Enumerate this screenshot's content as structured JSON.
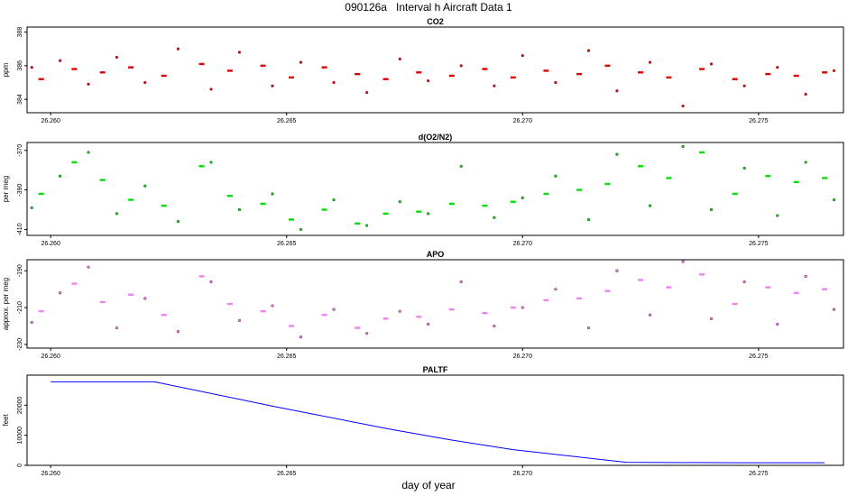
{
  "figure": {
    "title": "090126a   Interval h Aircraft Data 1",
    "xlabel": "day of year"
  },
  "chart_data": [
    {
      "type": "scatter",
      "title": "CO2",
      "ylabel": "ppm",
      "color": "#e00000",
      "flight_color": "#8b2a2a",
      "xlim": [
        26.2595,
        26.2768
      ],
      "ylim": [
        383.2,
        388.3
      ],
      "xticks": [
        "26.260",
        "26.265",
        "26.270",
        "26.275"
      ],
      "yticks": [
        "384",
        "386",
        "388"
      ],
      "series": [
        {
          "marker": "dash",
          "x": [
            26.2598,
            26.2605,
            26.2611,
            26.2617,
            26.2624,
            26.2632,
            26.2638,
            26.2645,
            26.2651,
            26.2658,
            26.2665,
            26.2671,
            26.2678,
            26.2685,
            26.2692,
            26.2698,
            26.2705,
            26.2712,
            26.2718,
            26.2725,
            26.2731,
            26.2738,
            26.2745,
            26.2752,
            26.2758,
            26.2764
          ],
          "y": [
            385.2,
            385.8,
            385.6,
            385.9,
            385.4,
            386.1,
            385.7,
            386.0,
            385.3,
            385.9,
            385.5,
            385.2,
            385.6,
            385.4,
            385.8,
            385.3,
            385.7,
            385.5,
            386.0,
            385.6,
            385.3,
            385.8,
            385.2,
            385.5,
            385.4,
            385.6
          ]
        },
        {
          "marker": "circle",
          "x": [
            26.2596,
            26.2602,
            26.2608,
            26.2614,
            26.262,
            26.2627,
            26.2634,
            26.264,
            26.2647,
            26.2653,
            26.266,
            26.2667,
            26.2674,
            26.268,
            26.2687,
            26.2694,
            26.27,
            26.2707,
            26.2714,
            26.272,
            26.2727,
            26.2734,
            26.274,
            26.2747,
            26.2754,
            26.276,
            26.2766
          ],
          "y": [
            385.9,
            386.3,
            384.9,
            386.5,
            385.0,
            387.0,
            384.6,
            386.8,
            384.8,
            386.2,
            385.0,
            384.4,
            386.4,
            385.1,
            386.0,
            384.8,
            386.6,
            385.0,
            386.9,
            384.5,
            386.2,
            383.6,
            386.1,
            384.8,
            385.9,
            384.3,
            385.7
          ]
        }
      ]
    },
    {
      "type": "scatter",
      "title": "d(O2/N2)",
      "ylabel": "per meg",
      "color": "#00e000",
      "flight_color": "#2e6b2e",
      "xlim": [
        26.2595,
        26.2768
      ],
      "ylim": [
        -413,
        -366
      ],
      "xticks": [
        "26.260",
        "26.265",
        "26.270",
        "26.275"
      ],
      "yticks": [
        "-410",
        "-390",
        "-370"
      ],
      "series": [
        {
          "marker": "dash",
          "x": [
            26.2598,
            26.2605,
            26.2611,
            26.2617,
            26.2624,
            26.2632,
            26.2638,
            26.2645,
            26.2651,
            26.2658,
            26.2665,
            26.2671,
            26.2678,
            26.2685,
            26.2692,
            26.2698,
            26.2705,
            26.2712,
            26.2718,
            26.2725,
            26.2731,
            26.2738,
            26.2745,
            26.2752,
            26.2758,
            26.2764
          ],
          "y": [
            -392,
            -376,
            -385,
            -395,
            -398,
            -378,
            -393,
            -397,
            -405,
            -400,
            -407,
            -402,
            -401,
            -397,
            -398,
            -396,
            -392,
            -390,
            -387,
            -378,
            -384,
            -371,
            -392,
            -383,
            -386,
            -384
          ]
        },
        {
          "marker": "circle",
          "x": [
            26.2596,
            26.2602,
            26.2608,
            26.2614,
            26.262,
            26.2627,
            26.2634,
            26.264,
            26.2647,
            26.2653,
            26.266,
            26.2667,
            26.2674,
            26.268,
            26.2687,
            26.2694,
            26.27,
            26.2707,
            26.2714,
            26.272,
            26.2727,
            26.2734,
            26.274,
            26.2747,
            26.2754,
            26.276,
            26.2766
          ],
          "y": [
            -399,
            -383,
            -371,
            -402,
            -388,
            -406,
            -376,
            -400,
            -392,
            -410,
            -395,
            -408,
            -396,
            -402,
            -378,
            -404,
            -394,
            -383,
            -405,
            -372,
            -398,
            -368,
            -400,
            -379,
            -403,
            -376,
            -395
          ]
        }
      ]
    },
    {
      "type": "scatter",
      "title": "APO",
      "ylabel": "approx. per meg",
      "color": "#ee82ee",
      "flight_color": "#7a3f7a",
      "xlim": [
        26.2595,
        26.2768
      ],
      "ylim": [
        -232,
        -184
      ],
      "xticks": [
        "26.260",
        "26.265",
        "26.270",
        "26.275"
      ],
      "yticks": [
        "-230",
        "-210",
        "-190"
      ],
      "series": [
        {
          "marker": "dash",
          "x": [
            26.2598,
            26.2605,
            26.2611,
            26.2617,
            26.2624,
            26.2632,
            26.2638,
            26.2645,
            26.2651,
            26.2658,
            26.2665,
            26.2671,
            26.2678,
            26.2685,
            26.2692,
            26.2698,
            26.2705,
            26.2712,
            26.2718,
            26.2725,
            26.2731,
            26.2738,
            26.2745,
            26.2752,
            26.2758,
            26.2764
          ],
          "y": [
            -212,
            -197,
            -207,
            -203,
            -214,
            -193,
            -208,
            -212,
            -220,
            -214,
            -221,
            -216,
            -215,
            -211,
            -213,
            -210,
            -206,
            -205,
            -201,
            -195,
            -199,
            -192,
            -208,
            -199,
            -202,
            -200
          ]
        },
        {
          "marker": "circle",
          "x": [
            26.2596,
            26.2602,
            26.2608,
            26.2614,
            26.262,
            26.2627,
            26.2634,
            26.264,
            26.2647,
            26.2653,
            26.266,
            26.2667,
            26.2674,
            26.268,
            26.2687,
            26.2694,
            26.27,
            26.2707,
            26.2714,
            26.272,
            26.2727,
            26.2734,
            26.274,
            26.2747,
            26.2754,
            26.276,
            26.2766
          ],
          "y": [
            -218,
            -202,
            -188,
            -221,
            -205,
            -223,
            -196,
            -217,
            -209,
            -226,
            -211,
            -224,
            -212,
            -219,
            -196,
            -220,
            -210,
            -200,
            -221,
            -190,
            -214,
            -185,
            -216,
            -196,
            -219,
            -193,
            -211
          ]
        }
      ]
    },
    {
      "type": "line",
      "title": "PALTF",
      "ylabel": "feet",
      "color": "#0000ff",
      "xlim": [
        26.2595,
        26.2768
      ],
      "ylim": [
        0,
        30000
      ],
      "xticks": [
        "26.260",
        "26.265",
        "26.270",
        "26.275"
      ],
      "yticks": [
        "0",
        "10000",
        "20000"
      ],
      "series": [
        {
          "x": [
            26.26,
            26.2622,
            26.2647,
            26.2672,
            26.2685,
            26.2698,
            26.2722,
            26.2746,
            26.2764
          ],
          "y": [
            27800,
            27800,
            19700,
            12000,
            8400,
            5200,
            1000,
            850,
            850
          ]
        }
      ]
    }
  ]
}
